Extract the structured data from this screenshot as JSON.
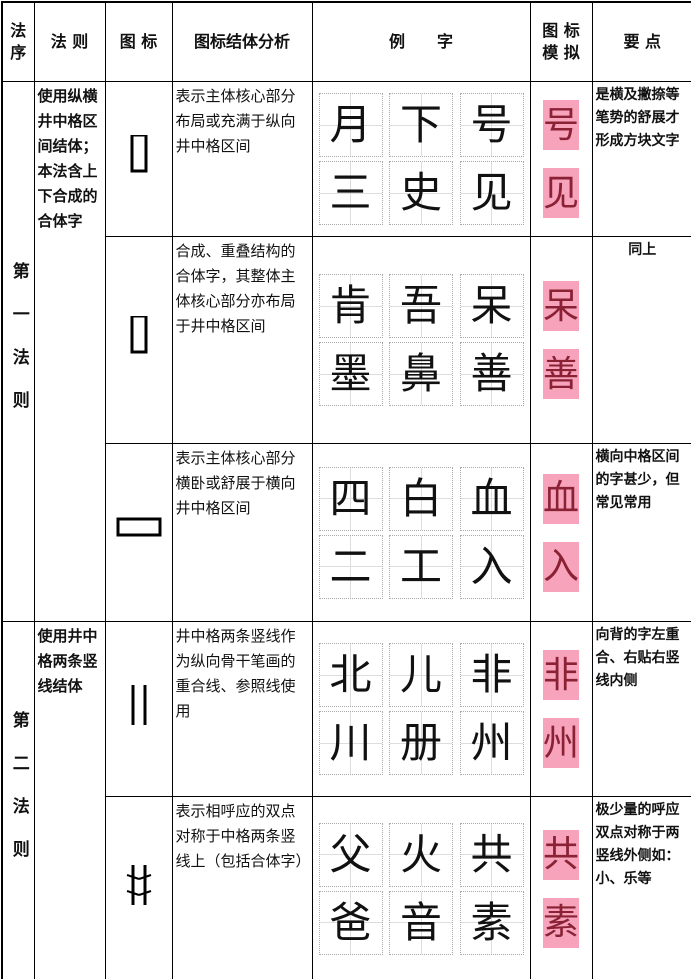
{
  "header": {
    "columns": [
      "法序",
      "法 则",
      "图 标",
      "图标结体分析",
      "例　　字",
      "图 标 模 拟",
      "要 点"
    ]
  },
  "groups": [
    {
      "order": "第一法则",
      "rule": "使用纵横井中格区间结体；本法含上下合成的合体字",
      "rows": [
        {
          "analysis": "表示主体核心部分布局或充满于纵向井中格区间",
          "examples": [
            [
              "月",
              "下",
              "号"
            ],
            [
              "三",
              "史",
              "见"
            ]
          ],
          "simulation": [
            "号",
            "见"
          ],
          "key_points": "是横及撇捺等笔势的舒展才形成方块文字"
        },
        {
          "analysis": "合成、重叠结构的合体字，其整体主体核心部分亦布局于井中格区间",
          "examples": [
            [
              "肯",
              "吾",
              "呆"
            ],
            [
              "墨",
              "鼻",
              "善"
            ]
          ],
          "simulation": [
            "呆",
            "善"
          ],
          "key_points": "同上"
        },
        {
          "analysis": "表示主体核心部分横卧或舒展于横向井中格区间",
          "examples": [
            [
              "四",
              "白",
              "血"
            ],
            [
              "二",
              "工",
              "入"
            ]
          ],
          "simulation": [
            "血",
            "入"
          ],
          "key_points": "横向中格区间的字甚少，但常见常用"
        }
      ]
    },
    {
      "order": "第二法则",
      "rule": "使用井中格两条竖线结体",
      "rows": [
        {
          "analysis": "井中格两条竖线作为纵向骨干笔画的重合线、参照线使用",
          "examples": [
            [
              "北",
              "儿",
              "非"
            ],
            [
              "川",
              "册",
              "州"
            ]
          ],
          "simulation": [
            "非",
            "州"
          ],
          "key_points": "向背的字左重合、右贴右竖线内侧"
        },
        {
          "analysis": "表示相呼应的双点对称于中格两条竖线上（包括合体字）",
          "examples": [
            [
              "父",
              "火",
              "共"
            ],
            [
              "爸",
              "音",
              "素"
            ]
          ],
          "simulation": [
            "共",
            "素"
          ],
          "key_points": "极少量的呼应双点对称于两竖线外侧如：小、乐等"
        }
      ]
    }
  ]
}
